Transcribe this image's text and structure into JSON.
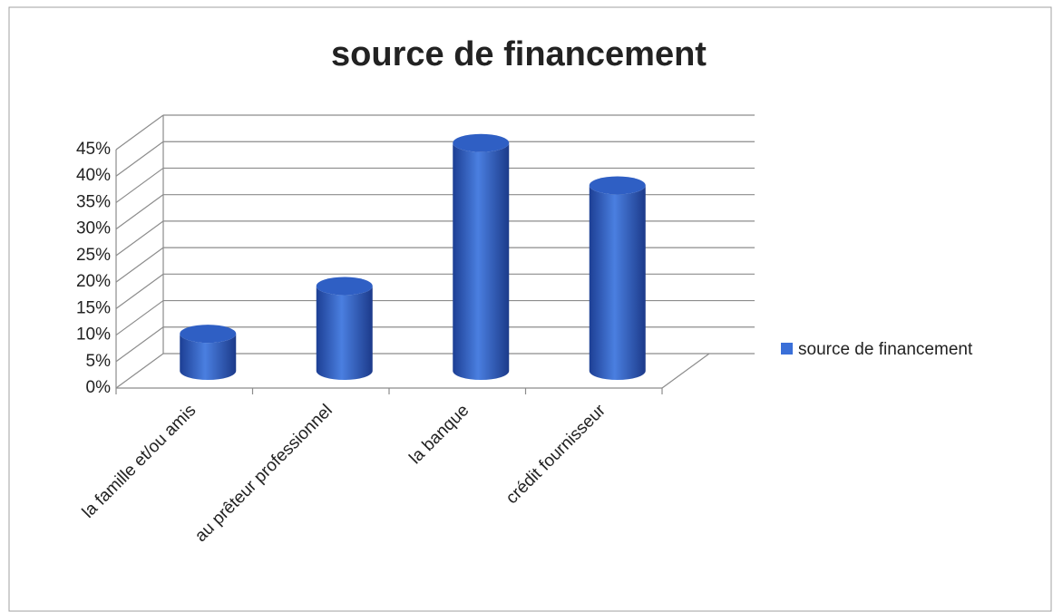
{
  "chart_data": {
    "type": "bar3d",
    "title": "source de financement",
    "categories": [
      "la famille et/ou amis",
      "au prêteur professionnel",
      "la banque",
      "crédit fournisseur"
    ],
    "series": [
      {
        "name": "source de financement",
        "color": "#3a6fd8",
        "values": [
          7,
          16,
          43,
          35
        ]
      }
    ],
    "ylim": [
      0,
      45
    ],
    "yticks": [
      {
        "value": 0,
        "label": "0%"
      },
      {
        "value": 5,
        "label": "5%"
      },
      {
        "value": 10,
        "label": "10%"
      },
      {
        "value": 15,
        "label": "15%"
      },
      {
        "value": 20,
        "label": "20%"
      },
      {
        "value": 25,
        "label": "25%"
      },
      {
        "value": 30,
        "label": "30%"
      },
      {
        "value": 35,
        "label": "35%"
      },
      {
        "value": 40,
        "label": "40%"
      },
      {
        "value": 45,
        "label": "45%"
      }
    ],
    "grid": true,
    "legend": "right"
  }
}
